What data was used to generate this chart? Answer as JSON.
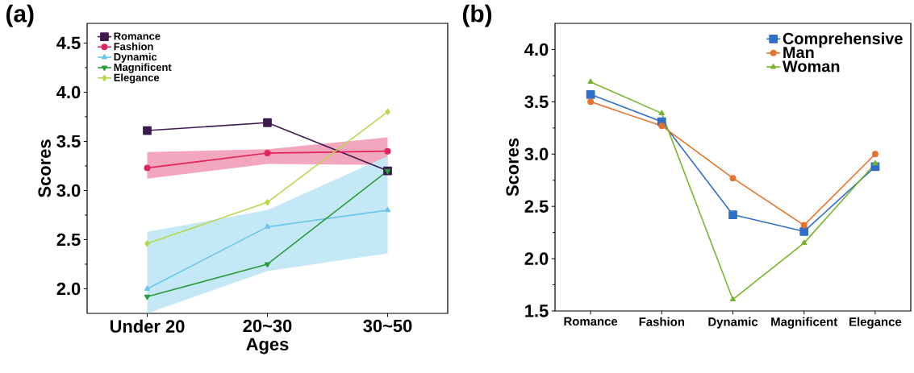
{
  "chart_data": [
    {
      "type": "line",
      "title": "(a)",
      "xlabel": "Ages",
      "ylabel": "Scores",
      "categories": [
        "Under 20",
        "20~30",
        "30~50"
      ],
      "ylim": [
        1.75,
        4.7
      ],
      "yticks": [
        {
          "value": 2,
          "label": "2.0"
        },
        {
          "value": 2.5,
          "label": "2.5"
        },
        {
          "value": 3,
          "label": "3.0"
        },
        {
          "value": 3.5,
          "label": "3.5"
        },
        {
          "value": 4,
          "label": "4.0"
        },
        {
          "value": 4.5,
          "label": "4.5"
        }
      ],
      "legend": "top left",
      "grid": false,
      "series": [
        {
          "name": "Romance",
          "color": "#3d1a4f",
          "marker": "square",
          "values": [
            3.61,
            3.69,
            3.2
          ]
        },
        {
          "name": "Fashion",
          "color": "#e0245e",
          "marker": "circle",
          "values": [
            3.23,
            3.38,
            3.4
          ],
          "lower": [
            3.12,
            3.27,
            3.26
          ],
          "upper": [
            3.39,
            3.42,
            3.54
          ]
        },
        {
          "name": "Dynamic",
          "color": "#6ec6ea",
          "marker": "triangle",
          "values": [
            2.0,
            2.63,
            2.8
          ],
          "lower": [
            1.75,
            2.18,
            2.36
          ],
          "upper": [
            2.58,
            2.8,
            3.35
          ]
        },
        {
          "name": "Magnificent",
          "color": "#2a9d3a",
          "marker": "triangle down",
          "values": [
            1.92,
            2.25,
            3.2
          ]
        },
        {
          "name": "Elegance",
          "color": "#b5d94a",
          "marker": "diamond",
          "values": [
            2.46,
            2.88,
            3.8
          ]
        }
      ]
    },
    {
      "type": "line",
      "title": "(b)",
      "ylabel": "Scores",
      "categories": [
        "Romance",
        "Fashion",
        "Dynamic",
        "Magnificent",
        "Elegance"
      ],
      "ylim": [
        1.5,
        4.25
      ],
      "yticks": [
        {
          "value": 1.5,
          "label": "1.5"
        },
        {
          "value": 2,
          "label": "2.0"
        },
        {
          "value": 2.5,
          "label": "2.5"
        },
        {
          "value": 3,
          "label": "3.0"
        },
        {
          "value": 3.5,
          "label": "3.5"
        },
        {
          "value": 4,
          "label": "4.0"
        }
      ],
      "legend": "top right",
      "grid": false,
      "series": [
        {
          "name": "Comprehensive",
          "color": "#2f6fc9",
          "marker": "square",
          "values": [
            3.57,
            3.31,
            2.42,
            2.26,
            2.88
          ]
        },
        {
          "name": "Man",
          "color": "#e8722c",
          "marker": "circle",
          "values": [
            3.5,
            3.27,
            2.77,
            2.32,
            3.0
          ]
        },
        {
          "name": "Woman",
          "color": "#7ab52f",
          "marker": "triangle",
          "values": [
            3.69,
            3.39,
            1.61,
            2.15,
            2.91
          ]
        }
      ]
    }
  ]
}
